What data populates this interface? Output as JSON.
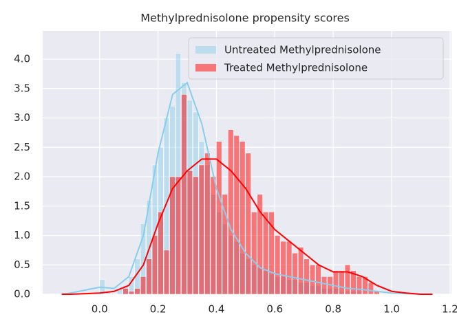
{
  "chart_data": {
    "type": "histogram",
    "title": "Methylprednisolone propensity scores",
    "bins": [
      0.0,
      0.02,
      0.04,
      0.06,
      0.08,
      0.1,
      0.12,
      0.14,
      0.16,
      0.18,
      0.2,
      0.22,
      0.24,
      0.26,
      0.28,
      0.3,
      0.32,
      0.34,
      0.36,
      0.38,
      0.4,
      0.42,
      0.44,
      0.46,
      0.48,
      0.5,
      0.52,
      0.54,
      0.56,
      0.58,
      0.6,
      0.62,
      0.64,
      0.66,
      0.68,
      0.7,
      0.72,
      0.74,
      0.76,
      0.78,
      0.8,
      0.82,
      0.84,
      0.86,
      0.88,
      0.9,
      0.92,
      0.94,
      0.96
    ],
    "kde_x": [
      -0.13,
      -0.1,
      0.0,
      0.05,
      0.1,
      0.15,
      0.2,
      0.25,
      0.3,
      0.35,
      0.4,
      0.45,
      0.5,
      0.55,
      0.6,
      0.65,
      0.7,
      0.75,
      0.8,
      0.85,
      0.9,
      0.95,
      1.0,
      1.05,
      1.1,
      1.14
    ],
    "series": [
      {
        "name": "Untreated Methylprednisolone",
        "color": "#87ceeb",
        "values": [
          0.25,
          0.05,
          0.0,
          0.1,
          0.15,
          0.3,
          0.6,
          1.2,
          1.6,
          2.2,
          2.5,
          3.0,
          3.2,
          4.1,
          3.6,
          3.3,
          3.1,
          2.6,
          2.2,
          1.7,
          1.4,
          1.2,
          1.0,
          0.9,
          0.7,
          0.6,
          0.5,
          0.45,
          0.4,
          0.35,
          0.3,
          0.3,
          0.25,
          0.25,
          0.2,
          0.2,
          0.15,
          0.15,
          0.1,
          0.1,
          0.1,
          0.05,
          0.05,
          0.05,
          0.05,
          0.0,
          0.0,
          0.0
        ],
        "kde_values": [
          0.0,
          0.02,
          0.12,
          0.1,
          0.3,
          1.0,
          2.4,
          3.4,
          3.6,
          2.9,
          1.8,
          1.1,
          0.7,
          0.45,
          0.35,
          0.3,
          0.25,
          0.2,
          0.15,
          0.1,
          0.08,
          0.05,
          0.02,
          0.01,
          0.0,
          0.0
        ]
      },
      {
        "name": "Treated Methylprednisolone",
        "color": "#ff0000",
        "values": [
          0.0,
          0.0,
          0.0,
          0.0,
          0.1,
          0.05,
          0.1,
          0.3,
          0.6,
          1.0,
          1.4,
          0.75,
          2.0,
          2.0,
          3.4,
          2.1,
          2.0,
          2.2,
          2.4,
          2.0,
          2.6,
          1.7,
          2.8,
          2.7,
          2.6,
          2.4,
          1.4,
          1.7,
          1.4,
          1.4,
          1.0,
          0.9,
          0.9,
          0.7,
          0.8,
          0.6,
          0.5,
          0.5,
          0.3,
          0.3,
          0.4,
          0.4,
          0.5,
          0.4,
          0.3,
          0.3,
          0.2,
          0.05
        ],
        "kde_values": [
          0.0,
          0.0,
          0.02,
          0.05,
          0.15,
          0.5,
          1.2,
          1.8,
          2.1,
          2.3,
          2.3,
          2.1,
          1.8,
          1.4,
          1.1,
          0.9,
          0.7,
          0.5,
          0.38,
          0.38,
          0.3,
          0.15,
          0.05,
          0.02,
          0.0,
          0.0
        ]
      }
    ],
    "xlim": [
      -0.195,
      1.205
    ],
    "ylim": [
      0,
      4.48
    ],
    "xticks": [
      {
        "value": 0,
        "label": "0.0"
      },
      0.2,
      0.4,
      0.6,
      0.8,
      {
        "value": 1,
        "label": "1.0"
      },
      1.2
    ],
    "yticks": [
      {
        "value": 0,
        "label": "0.0"
      },
      0.5,
      {
        "value": 1,
        "label": "1.0"
      },
      1.5,
      {
        "value": 2,
        "label": "2.0"
      },
      2.5,
      {
        "value": 3,
        "label": "3.0"
      },
      3.5,
      {
        "value": 4,
        "label": "4.0"
      }
    ],
    "grid": true,
    "legend": "upper right"
  }
}
